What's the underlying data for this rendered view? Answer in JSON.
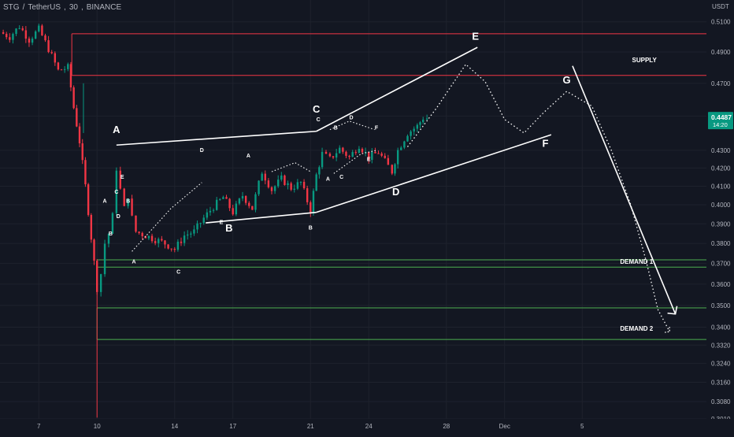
{
  "header": {
    "symbol": "STG",
    "pair": "TetherUS",
    "interval": "30",
    "exchange": "BINANCE"
  },
  "price_axis": {
    "currency": "USDT",
    "current_price": "0.4487",
    "countdown": "14:20"
  },
  "colors": {
    "background": "#131722",
    "supply_line": "#f23645",
    "demand_line": "#4caf50",
    "up_candle": "#089981",
    "down_candle": "#f23645",
    "annotation": "#ffffff",
    "price_tag": "#089981"
  },
  "chart_data": {
    "type": "candlestick",
    "title": "STG / TetherUS, 30, BINANCE",
    "y_axis": {
      "scale": "log",
      "range": [
        0.301,
        0.525
      ],
      "ticks": [
        "0.5100",
        "0.4900",
        "0.4700",
        "0.4500",
        "0.4300",
        "0.4200",
        "0.4100",
        "0.4000",
        "0.3900",
        "0.3800",
        "0.3700",
        "0.3600",
        "0.3500",
        "0.3400",
        "0.3320",
        "0.3240",
        "0.3160",
        "0.3080",
        "0.3010"
      ],
      "label": "USDT"
    },
    "x_axis": {
      "ticks": [
        "7",
        "10",
        "14",
        "17",
        "21",
        "24",
        "28",
        "Dec",
        "5"
      ],
      "tick_days": [
        7,
        10,
        14,
        17,
        21,
        24,
        28,
        31,
        35
      ],
      "range_days": [
        5.0,
        41.4
      ]
    },
    "price_path": [
      [
        5.0,
        0.503
      ],
      [
        5.5,
        0.5
      ],
      [
        6.0,
        0.507
      ],
      [
        6.5,
        0.498
      ],
      [
        7.0,
        0.505
      ],
      [
        7.5,
        0.492
      ],
      [
        8.0,
        0.478
      ],
      [
        8.5,
        0.48
      ],
      [
        8.8,
        0.455
      ],
      [
        9.1,
        0.435
      ],
      [
        9.4,
        0.41
      ],
      [
        9.7,
        0.383
      ],
      [
        10.0,
        0.358
      ],
      [
        10.2,
        0.365
      ],
      [
        10.4,
        0.38
      ],
      [
        10.6,
        0.385
      ],
      [
        10.8,
        0.394
      ],
      [
        11.0,
        0.42
      ],
      [
        11.2,
        0.408
      ],
      [
        11.4,
        0.398
      ],
      [
        11.6,
        0.405
      ],
      [
        11.8,
        0.393
      ],
      [
        12.0,
        0.386
      ],
      [
        12.5,
        0.384
      ],
      [
        13.0,
        0.382
      ],
      [
        13.5,
        0.38
      ],
      [
        14.0,
        0.377
      ],
      [
        14.5,
        0.384
      ],
      [
        15.0,
        0.386
      ],
      [
        15.5,
        0.393
      ],
      [
        16.0,
        0.399
      ],
      [
        16.5,
        0.404
      ],
      [
        17.0,
        0.396
      ],
      [
        17.5,
        0.405
      ],
      [
        18.0,
        0.398
      ],
      [
        18.5,
        0.418
      ],
      [
        19.0,
        0.408
      ],
      [
        19.5,
        0.414
      ],
      [
        20.0,
        0.409
      ],
      [
        20.5,
        0.412
      ],
      [
        21.0,
        0.397
      ],
      [
        21.3,
        0.416
      ],
      [
        21.6,
        0.428
      ],
      [
        22.0,
        0.425
      ],
      [
        22.5,
        0.431
      ],
      [
        23.0,
        0.426
      ],
      [
        23.5,
        0.433
      ],
      [
        24.0,
        0.426
      ],
      [
        24.5,
        0.429
      ],
      [
        25.0,
        0.421
      ],
      [
        25.2,
        0.418
      ],
      [
        25.5,
        0.43
      ],
      [
        26.0,
        0.44
      ],
      [
        26.5,
        0.444
      ],
      [
        26.8,
        0.449
      ],
      [
        27.0,
        0.4487
      ]
    ],
    "levels": [
      {
        "name": "Supply upper",
        "price": 0.502,
        "color": "red"
      },
      {
        "name": "Supply lower",
        "price": 0.475,
        "color": "red"
      },
      {
        "name": "Demand 1 upper",
        "price": 0.3718,
        "color": "green"
      },
      {
        "name": "Demand 1 lower",
        "price": 0.3682,
        "color": "green"
      },
      {
        "name": "Demand 2 upper",
        "price": 0.3488,
        "color": "green"
      },
      {
        "name": "Demand 2 lower",
        "price": 0.3345,
        "color": "green"
      }
    ],
    "level_labels": [
      {
        "text": "SUPPLY",
        "day": 38.2,
        "price": 0.485
      },
      {
        "text": "DEMAND 1",
        "day": 37.8,
        "price": 0.371
      },
      {
        "text": "DEMAND 2",
        "day": 37.8,
        "price": 0.3395
      }
    ],
    "trend_lines": [
      {
        "name": "triangle-top",
        "points": [
          [
            11.0,
            0.433
          ],
          [
            21.3,
            0.441
          ]
        ]
      },
      {
        "name": "triangle-bottom",
        "points": [
          [
            15.6,
            0.3905
          ],
          [
            21.3,
            0.396
          ]
        ]
      },
      {
        "name": "channel-top",
        "points": [
          [
            21.3,
            0.441
          ],
          [
            29.6,
            0.493
          ]
        ]
      },
      {
        "name": "channel-bottom",
        "points": [
          [
            21.3,
            0.396
          ],
          [
            33.4,
            0.439
          ]
        ]
      },
      {
        "name": "forecast-arrow",
        "points": [
          [
            34.5,
            0.481
          ],
          [
            39.8,
            0.346
          ]
        ]
      }
    ],
    "projection_path": [
      [
        26.0,
        0.432
      ],
      [
        27.5,
        0.455
      ],
      [
        29.0,
        0.482
      ],
      [
        30.0,
        0.471
      ],
      [
        31.0,
        0.448
      ],
      [
        32.0,
        0.44
      ],
      [
        33.0,
        0.452
      ],
      [
        34.2,
        0.465
      ],
      [
        35.5,
        0.456
      ],
      [
        36.5,
        0.43
      ],
      [
        37.5,
        0.4
      ],
      [
        38.3,
        0.371
      ],
      [
        38.9,
        0.348
      ],
      [
        39.5,
        0.338
      ]
    ],
    "wave_labels": [
      {
        "text": "A",
        "day": 11.0,
        "price": 0.44,
        "size": "large"
      },
      {
        "text": "B",
        "day": 16.8,
        "price": 0.386,
        "size": "large"
      },
      {
        "text": "C",
        "day": 21.3,
        "price": 0.452,
        "size": "large"
      },
      {
        "text": "D",
        "day": 25.4,
        "price": 0.405,
        "size": "large"
      },
      {
        "text": "E",
        "day": 29.5,
        "price": 0.498,
        "size": "large"
      },
      {
        "text": "F",
        "day": 33.1,
        "price": 0.432,
        "size": "large"
      },
      {
        "text": "G",
        "day": 34.2,
        "price": 0.47,
        "size": "large"
      },
      {
        "text": "A",
        "day": 10.4,
        "price": 0.401,
        "size": "small"
      },
      {
        "text": "B",
        "day": 10.7,
        "price": 0.384,
        "size": "small"
      },
      {
        "text": "E",
        "day": 11.3,
        "price": 0.414,
        "size": "small"
      },
      {
        "text": "C",
        "day": 11.0,
        "price": 0.406,
        "size": "small"
      },
      {
        "text": "D",
        "day": 11.1,
        "price": 0.393,
        "size": "small"
      },
      {
        "text": "B",
        "day": 11.6,
        "price": 0.401,
        "size": "small"
      },
      {
        "text": "A",
        "day": 11.9,
        "price": 0.37,
        "size": "small"
      },
      {
        "text": "C",
        "day": 14.2,
        "price": 0.365,
        "size": "small"
      },
      {
        "text": "D",
        "day": 15.4,
        "price": 0.429,
        "size": "small"
      },
      {
        "text": "E",
        "day": 16.4,
        "price": 0.39,
        "size": "small"
      },
      {
        "text": "A",
        "day": 17.8,
        "price": 0.426,
        "size": "small"
      },
      {
        "text": "B",
        "day": 21.0,
        "price": 0.387,
        "size": "small"
      },
      {
        "text": "C",
        "day": 21.4,
        "price": 0.447,
        "size": "small"
      },
      {
        "text": "B",
        "day": 22.3,
        "price": 0.442,
        "size": "small"
      },
      {
        "text": "A",
        "day": 21.9,
        "price": 0.413,
        "size": "small"
      },
      {
        "text": "C",
        "day": 22.6,
        "price": 0.414,
        "size": "small"
      },
      {
        "text": "D",
        "day": 23.1,
        "price": 0.448,
        "size": "small"
      },
      {
        "text": "F",
        "day": 24.4,
        "price": 0.442,
        "size": "small"
      },
      {
        "text": "E",
        "day": 24.0,
        "price": 0.424,
        "size": "small"
      }
    ],
    "legend": "none",
    "grid": true
  }
}
